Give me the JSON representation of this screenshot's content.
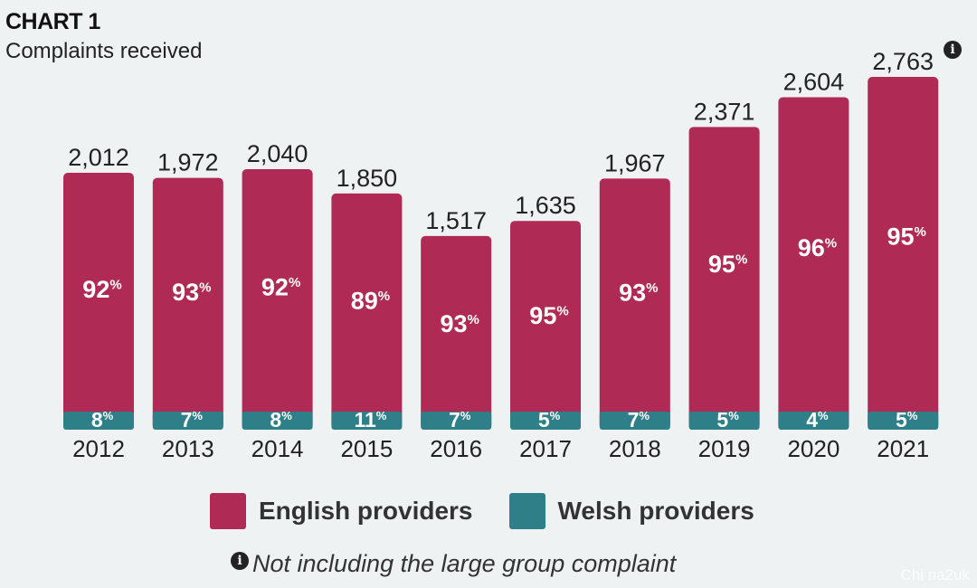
{
  "header": {
    "label": "CHART 1",
    "title": "Complaints received"
  },
  "footnote": "Not including the large group complaint",
  "watermark": "Chi na2uk",
  "chart_data": {
    "type": "bar",
    "stacked": true,
    "categories": [
      "2012",
      "2013",
      "2014",
      "2015",
      "2016",
      "2017",
      "2018",
      "2019",
      "2020",
      "2021"
    ],
    "totals": [
      2012,
      1972,
      2040,
      1850,
      1517,
      1635,
      1967,
      2371,
      2604,
      2763
    ],
    "total_labels": [
      "2,012",
      "1,972",
      "2,040",
      "1,850",
      "1,517",
      "1,635",
      "1,967",
      "2,371",
      "2,604",
      "2,763"
    ],
    "series": [
      {
        "name": "English providers",
        "color": "#b02a56",
        "percent": [
          92,
          93,
          92,
          89,
          93,
          95,
          93,
          95,
          96,
          95
        ]
      },
      {
        "name": "Welsh providers",
        "color": "#2f7f88",
        "percent": [
          8,
          7,
          8,
          11,
          7,
          5,
          7,
          5,
          4,
          5
        ]
      }
    ],
    "ylim": [
      0,
      2763
    ],
    "legend_position": "bottom",
    "grid": false
  },
  "icons": {
    "info": "info-icon"
  }
}
